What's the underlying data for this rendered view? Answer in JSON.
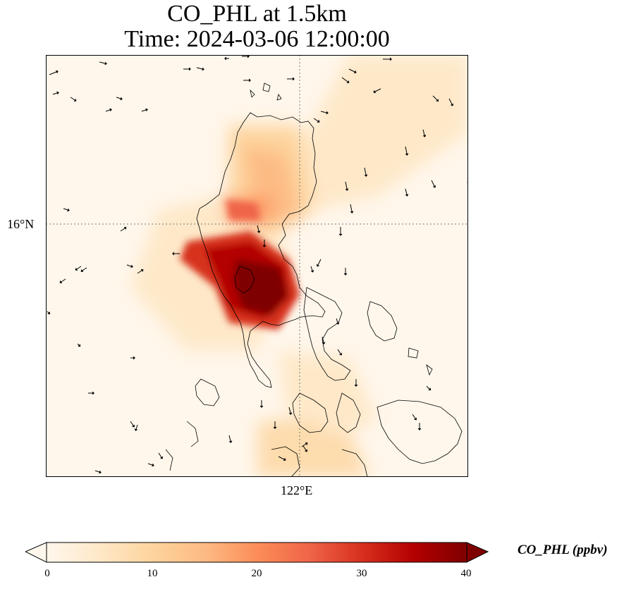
{
  "title": {
    "line1": "CO_PHL at 1.5km",
    "line2": "Time: 2024-03-06 12:00:00"
  },
  "map": {
    "variable": "CO_PHL",
    "gridlines": "dotted",
    "lat_tick": "16°N",
    "lon_tick": "122°E",
    "lat_gridline_value": 16,
    "lon_gridline_value": 122
  },
  "colorbar": {
    "label": "CO_PHL (ppbv)",
    "ticks": [
      "0",
      "10",
      "20",
      "30",
      "40"
    ],
    "tick_values": [
      0,
      10,
      20,
      30,
      40
    ],
    "vmin": 0,
    "vmax": 40,
    "extend": "both",
    "colormap": "OrRd",
    "colors": [
      "#fff7ec",
      "#fee8c8",
      "#fdd49e",
      "#fdbb84",
      "#fc8d59",
      "#ef6548",
      "#d7301f",
      "#b30000",
      "#7f0000"
    ]
  },
  "chart_data": {
    "type": "heatmap",
    "title": "CO_PHL at 1.5km",
    "subtitle": "Time: 2024-03-06 12:00:00",
    "x_ticks": [
      "122°E"
    ],
    "y_ticks": [
      "16°N"
    ],
    "value_label": "CO_PHL (ppbv)",
    "value_range": [
      0,
      40
    ],
    "grid": true
  }
}
